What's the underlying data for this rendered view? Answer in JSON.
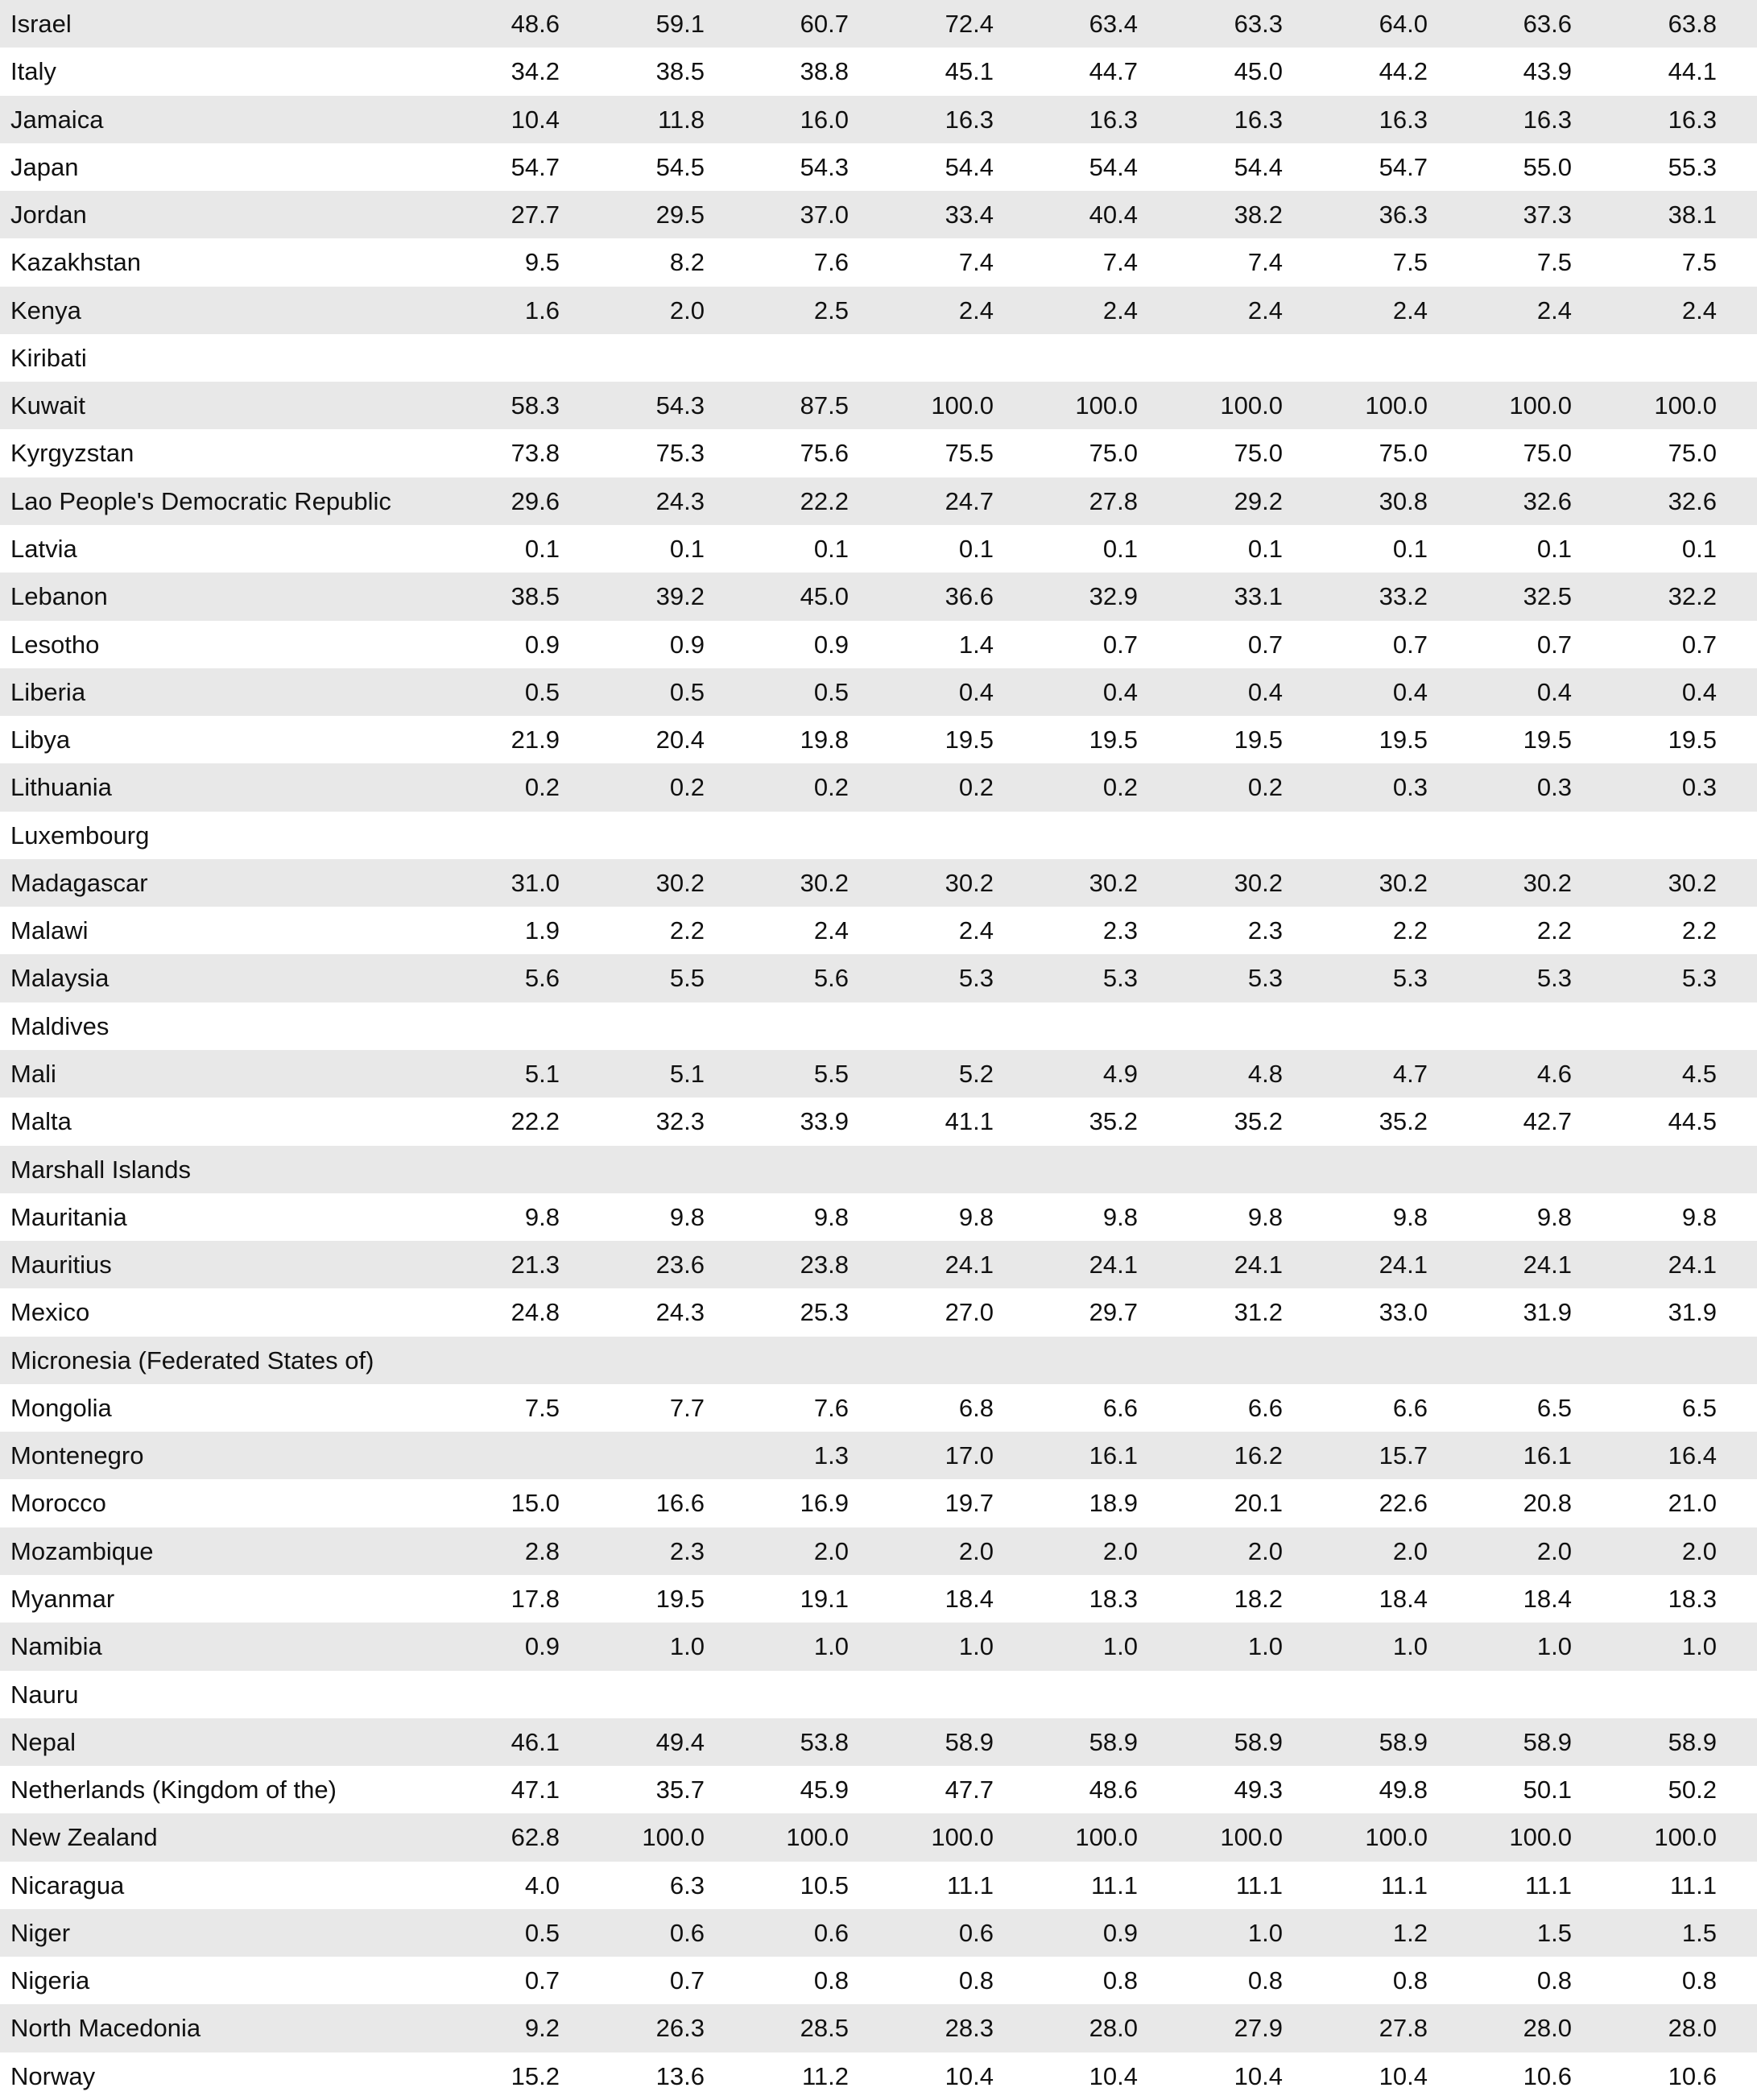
{
  "table": {
    "rows": [
      [
        "Israel",
        "48.6",
        "59.1",
        "60.7",
        "72.4",
        "63.4",
        "63.3",
        "64.0",
        "63.6",
        "63.8"
      ],
      [
        "Italy",
        "34.2",
        "38.5",
        "38.8",
        "45.1",
        "44.7",
        "45.0",
        "44.2",
        "43.9",
        "44.1"
      ],
      [
        "Jamaica",
        "10.4",
        "11.8",
        "16.0",
        "16.3",
        "16.3",
        "16.3",
        "16.3",
        "16.3",
        "16.3"
      ],
      [
        "Japan",
        "54.7",
        "54.5",
        "54.3",
        "54.4",
        "54.4",
        "54.4",
        "54.7",
        "55.0",
        "55.3"
      ],
      [
        "Jordan",
        "27.7",
        "29.5",
        "37.0",
        "33.4",
        "40.4",
        "38.2",
        "36.3",
        "37.3",
        "38.1"
      ],
      [
        "Kazakhstan",
        "9.5",
        "8.2",
        "7.6",
        "7.4",
        "7.4",
        "7.4",
        "7.5",
        "7.5",
        "7.5"
      ],
      [
        "Kenya",
        "1.6",
        "2.0",
        "2.5",
        "2.4",
        "2.4",
        "2.4",
        "2.4",
        "2.4",
        "2.4"
      ],
      [
        "Kiribati"
      ],
      [
        "Kuwait",
        "58.3",
        "54.3",
        "87.5",
        "100.0",
        "100.0",
        "100.0",
        "100.0",
        "100.0",
        "100.0"
      ],
      [
        "Kyrgyzstan",
        "73.8",
        "75.3",
        "75.6",
        "75.5",
        "75.0",
        "75.0",
        "75.0",
        "75.0",
        "75.0"
      ],
      [
        "Lao People's Democratic Republic",
        "29.6",
        "24.3",
        "22.2",
        "24.7",
        "27.8",
        "29.2",
        "30.8",
        "32.6",
        "32.6"
      ],
      [
        "Latvia",
        "0.1",
        "0.1",
        "0.1",
        "0.1",
        "0.1",
        "0.1",
        "0.1",
        "0.1",
        "0.1"
      ],
      [
        "Lebanon",
        "38.5",
        "39.2",
        "45.0",
        "36.6",
        "32.9",
        "33.1",
        "33.2",
        "32.5",
        "32.2"
      ],
      [
        "Lesotho",
        "0.9",
        "0.9",
        "0.9",
        "1.4",
        "0.7",
        "0.7",
        "0.7",
        "0.7",
        "0.7"
      ],
      [
        "Liberia",
        "0.5",
        "0.5",
        "0.5",
        "0.4",
        "0.4",
        "0.4",
        "0.4",
        "0.4",
        "0.4"
      ],
      [
        "Libya",
        "21.9",
        "20.4",
        "19.8",
        "19.5",
        "19.5",
        "19.5",
        "19.5",
        "19.5",
        "19.5"
      ],
      [
        "Lithuania",
        "0.2",
        "0.2",
        "0.2",
        "0.2",
        "0.2",
        "0.2",
        "0.3",
        "0.3",
        "0.3"
      ],
      [
        "Luxembourg"
      ],
      [
        "Madagascar",
        "31.0",
        "30.2",
        "30.2",
        "30.2",
        "30.2",
        "30.2",
        "30.2",
        "30.2",
        "30.2"
      ],
      [
        "Malawi",
        "1.9",
        "2.2",
        "2.4",
        "2.4",
        "2.3",
        "2.3",
        "2.2",
        "2.2",
        "2.2"
      ],
      [
        "Malaysia",
        "5.6",
        "5.5",
        "5.6",
        "5.3",
        "5.3",
        "5.3",
        "5.3",
        "5.3",
        "5.3"
      ],
      [
        "Maldives"
      ],
      [
        "Mali",
        "5.1",
        "5.1",
        "5.5",
        "5.2",
        "4.9",
        "4.8",
        "4.7",
        "4.6",
        "4.5"
      ],
      [
        "Malta",
        "22.2",
        "32.3",
        "33.9",
        "41.1",
        "35.2",
        "35.2",
        "35.2",
        "42.7",
        "44.5"
      ],
      [
        "Marshall Islands"
      ],
      [
        "Mauritania",
        "9.8",
        "9.8",
        "9.8",
        "9.8",
        "9.8",
        "9.8",
        "9.8",
        "9.8",
        "9.8"
      ],
      [
        "Mauritius",
        "21.3",
        "23.6",
        "23.8",
        "24.1",
        "24.1",
        "24.1",
        "24.1",
        "24.1",
        "24.1"
      ],
      [
        "Mexico",
        "24.8",
        "24.3",
        "25.3",
        "27.0",
        "29.7",
        "31.2",
        "33.0",
        "31.9",
        "31.9"
      ],
      [
        "Micronesia (Federated States of)"
      ],
      [
        "Mongolia",
        "7.5",
        "7.7",
        "7.6",
        "6.8",
        "6.6",
        "6.6",
        "6.6",
        "6.5",
        "6.5"
      ],
      [
        "Montenegro",
        null,
        null,
        "1.3",
        "17.0",
        "16.1",
        "16.2",
        "15.7",
        "16.1",
        "16.4"
      ],
      [
        "Morocco",
        "15.0",
        "16.6",
        "16.9",
        "19.7",
        "18.9",
        "20.1",
        "22.6",
        "20.8",
        "21.0"
      ],
      [
        "Mozambique",
        "2.8",
        "2.3",
        "2.0",
        "2.0",
        "2.0",
        "2.0",
        "2.0",
        "2.0",
        "2.0"
      ],
      [
        "Myanmar",
        "17.8",
        "19.5",
        "19.1",
        "18.4",
        "18.3",
        "18.2",
        "18.4",
        "18.4",
        "18.3"
      ],
      [
        "Namibia",
        "0.9",
        "1.0",
        "1.0",
        "1.0",
        "1.0",
        "1.0",
        "1.0",
        "1.0",
        "1.0"
      ],
      [
        "Nauru"
      ],
      [
        "Nepal",
        "46.1",
        "49.4",
        "53.8",
        "58.9",
        "58.9",
        "58.9",
        "58.9",
        "58.9",
        "58.9"
      ],
      [
        "Netherlands (Kingdom of the)",
        "47.1",
        "35.7",
        "45.9",
        "47.7",
        "48.6",
        "49.3",
        "49.8",
        "50.1",
        "50.2"
      ],
      [
        "New Zealand",
        "62.8",
        "100.0",
        "100.0",
        "100.0",
        "100.0",
        "100.0",
        "100.0",
        "100.0",
        "100.0"
      ],
      [
        "Nicaragua",
        "4.0",
        "6.3",
        "10.5",
        "11.1",
        "11.1",
        "11.1",
        "11.1",
        "11.1",
        "11.1"
      ],
      [
        "Niger",
        "0.5",
        "0.6",
        "0.6",
        "0.6",
        "0.9",
        "1.0",
        "1.2",
        "1.5",
        "1.5"
      ],
      [
        "Nigeria",
        "0.7",
        "0.7",
        "0.8",
        "0.8",
        "0.8",
        "0.8",
        "0.8",
        "0.8",
        "0.8"
      ],
      [
        "North Macedonia",
        "9.2",
        "26.3",
        "28.5",
        "28.3",
        "28.0",
        "27.9",
        "27.8",
        "28.0",
        "28.0"
      ],
      [
        "Norway",
        "15.2",
        "13.6",
        "11.2",
        "10.4",
        "10.4",
        "10.4",
        "10.4",
        "10.6",
        "10.6"
      ]
    ]
  }
}
